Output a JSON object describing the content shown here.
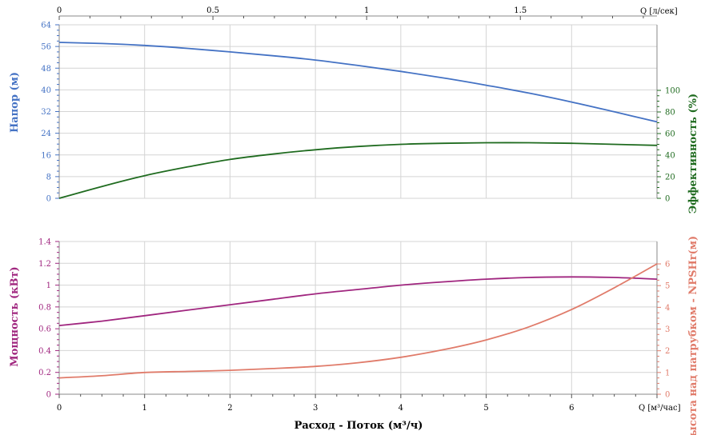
{
  "chart_data": {
    "type": "line",
    "xlabel": "Расход - Поток (м³/ч)",
    "x_unit_label": "Q [м³/час]",
    "x_top_unit_label": "Q [л/сек]",
    "x_range": [
      0,
      7
    ],
    "x_ticks": [
      0,
      1,
      2,
      3,
      4,
      5,
      6
    ],
    "x_top_ticks": [
      0,
      0.5,
      1,
      1.5
    ],
    "grid": true,
    "panels": [
      {
        "name": "top",
        "left_axis": {
          "label": "Напор (м)",
          "range": [
            0,
            64
          ],
          "ticks": [
            0,
            8,
            16,
            24,
            32,
            40,
            48,
            56,
            64
          ],
          "color": "#4472c4"
        },
        "right_axis": {
          "label": "Эффективность (%)",
          "range": [
            0,
            100
          ],
          "ticks": [
            0,
            20,
            40,
            60,
            80,
            100
          ],
          "color": "#1f6b1f"
        },
        "series": [
          {
            "name": "Напор (м)",
            "axis": "left",
            "color": "#4472c4",
            "x": [
              0,
              0.5,
              1,
              1.5,
              2,
              2.5,
              3,
              3.5,
              4,
              4.5,
              5,
              5.5,
              6,
              6.5,
              7
            ],
            "y": [
              57.5,
              57.1,
              56.4,
              55.3,
              54.0,
              52.6,
              51.0,
              49.0,
              46.8,
              44.4,
              41.7,
              38.8,
              35.5,
              31.9,
              28.2
            ]
          },
          {
            "name": "Эффективность (%)",
            "axis": "right",
            "color": "#1f6b1f",
            "x": [
              0,
              0.5,
              1,
              1.5,
              2,
              2.5,
              3,
              3.5,
              4,
              4.5,
              5,
              5.5,
              6,
              6.5,
              7
            ],
            "y": [
              0,
              11,
              21,
              29,
              36,
              41,
              45,
              48,
              50,
              51,
              51.5,
              51.5,
              51,
              50,
              49
            ]
          }
        ]
      },
      {
        "name": "bottom",
        "left_axis": {
          "label": "Мощность (кВт)",
          "range": [
            0,
            1.4
          ],
          "ticks": [
            0,
            0.2,
            0.4,
            0.6,
            0.8,
            1,
            1.2,
            1.4
          ],
          "color": "#a0267f"
        },
        "right_axis": {
          "label": "Высота над патрубком - NPSHr(м)",
          "range": [
            0,
            6
          ],
          "ticks": [
            0,
            1,
            2,
            3,
            4,
            5,
            6
          ],
          "color": "#e07b6a"
        },
        "series": [
          {
            "name": "Мощность (кВт)",
            "axis": "left",
            "color": "#a0267f",
            "x": [
              0,
              0.5,
              1,
              1.5,
              2,
              2.5,
              3,
              3.5,
              4,
              4.5,
              5,
              5.5,
              6,
              6.5,
              7
            ],
            "y": [
              0.63,
              0.67,
              0.72,
              0.77,
              0.82,
              0.87,
              0.92,
              0.96,
              1.0,
              1.03,
              1.055,
              1.07,
              1.075,
              1.07,
              1.055
            ]
          },
          {
            "name": "Высота над патрубком - NPSHr(м)",
            "axis": "right",
            "color": "#e07b6a",
            "x": [
              0,
              0.5,
              1,
              1.5,
              2,
              2.5,
              3,
              3.5,
              4,
              4.5,
              5,
              5.5,
              6,
              6.5,
              7
            ],
            "y": [
              0.75,
              0.85,
              1.0,
              1.05,
              1.1,
              1.18,
              1.28,
              1.45,
              1.7,
              2.05,
              2.5,
              3.1,
              3.9,
              4.9,
              6.0
            ]
          }
        ]
      }
    ]
  }
}
